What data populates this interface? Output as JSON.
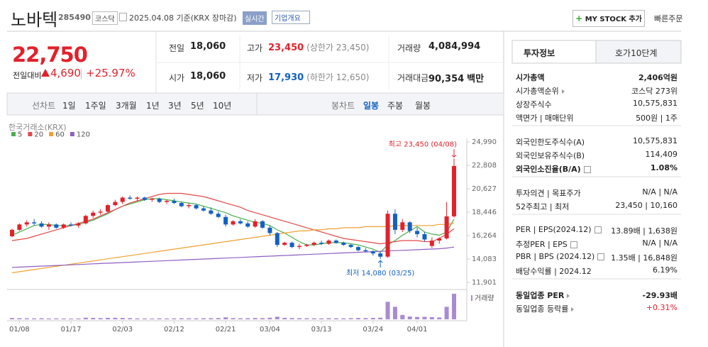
{
  "header": {
    "name": "노바텍",
    "code": "285490",
    "market": "코스닥",
    "date_basis": "2025.04.08 기준(KRX 장마감)",
    "realtime": "실시간",
    "company_info": "기업개요",
    "mystock": "MY STOCK 추가",
    "quick_order": "빠른주문"
  },
  "price": {
    "current": "22,750",
    "change_label": "전일대비",
    "change": "4,690",
    "rate": "+25.97%"
  },
  "stats": [
    [
      {
        "label": "전일",
        "value": "18,060"
      },
      {
        "label": "고가",
        "value": "23,450",
        "sub": "(상한가 23,450)",
        "color": "#e3212b"
      },
      {
        "label": "거래량",
        "value": "4,084,994"
      }
    ],
    [
      {
        "label": "시가",
        "value": "18,060"
      },
      {
        "label": "저가",
        "value": "17,930",
        "sub": "(하한가 12,650)",
        "color": "#1261c4"
      },
      {
        "label": "거래대금",
        "value": "90,354",
        "sub": "백만"
      }
    ]
  ],
  "tabs": {
    "line_chart": "선차트",
    "periods": [
      "1일",
      "1주일",
      "3개월",
      "1년",
      "3년",
      "5년",
      "10년"
    ],
    "candle_chart": "봉차트",
    "candle_periods": [
      "일봉",
      "주봉",
      "월봉"
    ],
    "selected_candle_period": 0
  },
  "chart_data": {
    "type": "candlestick",
    "source": "한국거래소(KRX)",
    "volume_label": "거래량",
    "up_color": "#e3212b",
    "down_color": "#1261c4",
    "volume_color": "#a98bd2",
    "ylim": [
      11901,
      24990
    ],
    "yticks": [
      {
        "value": 24990,
        "label": "24,990"
      },
      {
        "value": 22808,
        "label": "22,808"
      },
      {
        "value": 20627,
        "label": "20,627"
      },
      {
        "value": 18446,
        "label": "18,446"
      },
      {
        "value": 16264,
        "label": "16,264"
      },
      {
        "value": 14083,
        "label": "14,083"
      },
      {
        "value": 11901,
        "label": "11,901"
      }
    ],
    "categories": [
      null,
      "01/08",
      null,
      null,
      null,
      null,
      null,
      null,
      "01/17",
      null,
      null,
      null,
      null,
      null,
      null,
      "02/03",
      null,
      null,
      null,
      null,
      null,
      null,
      "02/12",
      null,
      null,
      null,
      null,
      null,
      null,
      "02/21",
      null,
      null,
      null,
      null,
      null,
      "03/04",
      null,
      null,
      null,
      null,
      null,
      null,
      "03/13",
      null,
      null,
      null,
      null,
      null,
      null,
      "03/24",
      null,
      null,
      null,
      null,
      null,
      "04/01",
      null,
      null,
      null,
      null,
      null
    ],
    "open": [
      16200,
      16800,
      17300,
      17500,
      17400,
      17100,
      17300,
      17000,
      17300,
      17200,
      17400,
      18100,
      18400,
      18500,
      19100,
      19400,
      19800,
      19700,
      19800,
      19600,
      19700,
      19400,
      19500,
      19300,
      19000,
      19100,
      18800,
      18600,
      18300,
      18000,
      17300,
      17600,
      17400,
      17100,
      17600,
      17000,
      16500,
      15400,
      15600,
      15200,
      15300,
      15400,
      15600,
      15500,
      15800,
      15600,
      15400,
      15200,
      14900,
      14800,
      14600,
      14300,
      18300,
      16800,
      17500,
      16700,
      16400,
      15300,
      15800,
      16000,
      18060
    ],
    "high": [
      16900,
      17400,
      17700,
      17800,
      17600,
      17500,
      17400,
      17400,
      17500,
      17500,
      18200,
      18600,
      18700,
      19200,
      19600,
      19900,
      20000,
      19900,
      19900,
      19800,
      19800,
      19600,
      19700,
      19400,
      19300,
      19200,
      19000,
      18900,
      18500,
      18200,
      17700,
      17800,
      17600,
      17800,
      17700,
      17200,
      16600,
      15700,
      15700,
      15500,
      15500,
      15700,
      15800,
      15900,
      15900,
      15700,
      15500,
      15300,
      15100,
      14900,
      14700,
      18600,
      18700,
      17800,
      17600,
      17000,
      16600,
      16100,
      16100,
      19400,
      23450
    ],
    "low": [
      16100,
      16700,
      17100,
      17200,
      17000,
      16800,
      16900,
      16900,
      17100,
      17000,
      17300,
      17900,
      18200,
      18400,
      19000,
      19200,
      19600,
      19500,
      19500,
      19400,
      19300,
      19200,
      19200,
      18900,
      18800,
      18700,
      18500,
      18200,
      17900,
      17100,
      17200,
      17300,
      17000,
      17000,
      16900,
      16300,
      15200,
      15300,
      15100,
      15000,
      15200,
      15300,
      15400,
      15400,
      15500,
      15300,
      15100,
      14800,
      14700,
      14400,
      14080,
      14200,
      16400,
      16600,
      16500,
      16100,
      15700,
      15100,
      15500,
      15900,
      17930
    ],
    "close": [
      16800,
      17300,
      17500,
      17400,
      17100,
      17300,
      17000,
      17300,
      17200,
      17400,
      18100,
      18400,
      18500,
      19100,
      19400,
      19800,
      19700,
      19800,
      19600,
      19700,
      19400,
      19500,
      19300,
      19000,
      19100,
      18800,
      18600,
      18300,
      18000,
      17300,
      17600,
      17400,
      17100,
      17600,
      17000,
      16500,
      15400,
      15600,
      15200,
      15300,
      15400,
      15600,
      15500,
      15800,
      15600,
      15400,
      15200,
      14900,
      14800,
      14600,
      14300,
      18300,
      16800,
      17500,
      16700,
      16400,
      15900,
      15800,
      16000,
      18060,
      22750
    ],
    "volume": [
      210000,
      180000,
      160000,
      150000,
      170000,
      140000,
      150000,
      130000,
      120000,
      140000,
      260000,
      230000,
      200000,
      240000,
      250000,
      220000,
      180000,
      150000,
      140000,
      130000,
      160000,
      140000,
      150000,
      170000,
      160000,
      150000,
      170000,
      180000,
      200000,
      320000,
      190000,
      170000,
      180000,
      210000,
      190000,
      260000,
      420000,
      230000,
      200000,
      180000,
      170000,
      160000,
      150000,
      180000,
      170000,
      160000,
      180000,
      210000,
      200000,
      230000,
      260000,
      2800000,
      2000000,
      700000,
      450000,
      380000,
      400000,
      350000,
      300000,
      2000000,
      4084994
    ],
    "series": [
      {
        "name": "5",
        "color": "#4cae4c",
        "values": [
          16300,
          16600,
          16900,
          17200,
          17300,
          17300,
          17200,
          17200,
          17200,
          17300,
          17500,
          17700,
          18000,
          18300,
          18700,
          19000,
          19200,
          19400,
          19600,
          19700,
          19700,
          19600,
          19500,
          19400,
          19300,
          19200,
          19000,
          18800,
          18600,
          18400,
          18100,
          17900,
          17700,
          17500,
          17400,
          17200,
          16800,
          16500,
          16100,
          15700,
          15400,
          15400,
          15500,
          15600,
          15600,
          15600,
          15500,
          15400,
          15200,
          15000,
          14700,
          15400,
          15800,
          16300,
          16700,
          17100,
          16600,
          16400,
          16300,
          16600,
          17800
        ]
      },
      {
        "name": "20",
        "color": "#e24a4a",
        "values": [
          15800,
          15900,
          16000,
          16200,
          16400,
          16600,
          16800,
          17000,
          17200,
          17400,
          17600,
          17800,
          18100,
          18400,
          18700,
          19000,
          19300,
          19500,
          19700,
          19900,
          20100,
          20200,
          20200,
          20200,
          20100,
          20000,
          19900,
          19700,
          19500,
          19300,
          19100,
          18900,
          18600,
          18400,
          18200,
          18000,
          17800,
          17600,
          17400,
          17200,
          17000,
          16800,
          16600,
          16400,
          16200,
          16000,
          15900,
          15800,
          15700,
          15600,
          15500,
          15600,
          15700,
          15800,
          15800,
          15800,
          15700,
          15700,
          16000,
          16400,
          16900
        ]
      },
      {
        "name": "60",
        "color": "#f0a030",
        "values": [
          12800,
          12900,
          13000,
          13100,
          13200,
          13300,
          13400,
          13500,
          13600,
          13700,
          13800,
          13900,
          14000,
          14100,
          14200,
          14300,
          14400,
          14500,
          14600,
          14700,
          14800,
          14900,
          15000,
          15100,
          15200,
          15300,
          15400,
          15500,
          15600,
          15700,
          15800,
          15900,
          16000,
          16100,
          16200,
          16300,
          16400,
          16500,
          16600,
          16700,
          16700,
          16800,
          16800,
          16900,
          16900,
          17000,
          17000,
          17000,
          17100,
          17100,
          17100,
          17100,
          17200,
          17200,
          17200,
          17200,
          17200,
          17200,
          17300,
          17300,
          17400
        ]
      },
      {
        "name": "120",
        "color": "#8e5fc2",
        "values": [
          13300,
          13330,
          13360,
          13390,
          13420,
          13450,
          13480,
          13510,
          13540,
          13570,
          13600,
          13630,
          13660,
          13690,
          13720,
          13750,
          13780,
          13810,
          13840,
          13870,
          13900,
          13930,
          13960,
          13990,
          14020,
          14050,
          14080,
          14110,
          14140,
          14170,
          14200,
          14230,
          14260,
          14290,
          14320,
          14350,
          14380,
          14410,
          14440,
          14470,
          14500,
          14530,
          14560,
          14590,
          14620,
          14650,
          14680,
          14710,
          14740,
          14770,
          14800,
          14830,
          14860,
          14890,
          14920,
          14950,
          14980,
          15010,
          15040,
          15100,
          15200
        ]
      }
    ],
    "annotations": {
      "high": "최고 23,450 (04/08)",
      "low": "최저 14,080 (03/25)"
    }
  },
  "side": {
    "tabs": [
      "투자정보",
      "호가10단계"
    ],
    "groups": [
      [
        {
          "label": "시가총액",
          "value": "2,406억원",
          "emphasis": true
        },
        {
          "label": "시가총액순위",
          "value": "코스닥 273위",
          "arrow": true
        },
        {
          "label": "상장주식수",
          "value": "10,575,831"
        },
        {
          "label": "액면가 | 매매단위",
          "value": "500원 | 1주"
        }
      ],
      [
        {
          "label": "외국인한도주식수(A)",
          "value": "10,575,831"
        },
        {
          "label": "외국인보유주식수(B)",
          "value": "114,409"
        },
        {
          "label": "외국인소진율(B/A)",
          "value": "1.08%",
          "emphasis": true,
          "help": true
        }
      ],
      [
        {
          "label": "투자의견 | 목표주가",
          "value": "N/A | N/A"
        },
        {
          "label": "52주최고 | 최저",
          "value": "23,450 | 10,160"
        }
      ],
      [
        {
          "label": "PER | EPS(2024.12)",
          "value": "13.89배 | 1,638원",
          "help": true
        },
        {
          "label": "추정PER | EPS",
          "value": "N/A | N/A",
          "help": true
        },
        {
          "label": "PBR | BPS (2024.12)",
          "value": "1.35배 | 16,848원",
          "help": true
        },
        {
          "label": "배당수익률 | 2024.12",
          "value": "6.19%"
        }
      ],
      [
        {
          "label": "동일업종 PER",
          "value": "-29.93배",
          "emphasis": true,
          "arrow": true
        },
        {
          "label": "동일업종 등락률",
          "value": "+0.31%",
          "arrow": true,
          "color": "#e3212b"
        }
      ]
    ]
  }
}
